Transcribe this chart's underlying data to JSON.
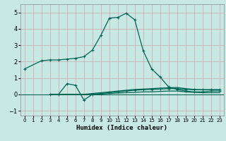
{
  "title": "",
  "xlabel": "Humidex (Indice chaleur)",
  "bg_color": "#c8e8e4",
  "line_color": "#006655",
  "grid_color": "#c8a8a8",
  "xlim": [
    -0.5,
    23.5
  ],
  "ylim": [
    -1.3,
    5.5
  ],
  "xticks": [
    0,
    1,
    2,
    3,
    4,
    5,
    6,
    7,
    8,
    9,
    10,
    11,
    12,
    13,
    14,
    15,
    16,
    17,
    18,
    19,
    20,
    21,
    22,
    23
  ],
  "yticks": [
    -1,
    0,
    1,
    2,
    3,
    4,
    5
  ],
  "line1_x": [
    0,
    2,
    3,
    4,
    5,
    6,
    7,
    8,
    9,
    10,
    11,
    12,
    13,
    14,
    15,
    16,
    17,
    18,
    19,
    20,
    21,
    22,
    23
  ],
  "line1_y": [
    1.55,
    2.05,
    2.1,
    2.1,
    2.15,
    2.2,
    2.3,
    2.7,
    3.6,
    4.65,
    4.7,
    4.95,
    4.55,
    2.65,
    1.55,
    1.05,
    0.45,
    0.3,
    0.2,
    0.15,
    0.15,
    0.2,
    0.2
  ],
  "line2_x": [
    3,
    4,
    5,
    6,
    7,
    8,
    9,
    10,
    11,
    12,
    13,
    14,
    15,
    16,
    17,
    18,
    19,
    20,
    21,
    22,
    23
  ],
  "line2_y": [
    0.0,
    0.0,
    0.65,
    0.55,
    -0.35,
    0.0,
    0.05,
    0.1,
    0.15,
    0.2,
    0.25,
    0.28,
    0.3,
    0.32,
    0.35,
    0.35,
    0.3,
    0.28,
    0.28,
    0.28,
    0.28
  ],
  "line3_x": [
    3,
    4,
    5,
    6,
    7,
    8,
    9,
    10,
    11,
    12,
    13,
    14,
    15,
    16,
    17,
    18,
    19,
    20,
    21,
    22,
    23
  ],
  "line3_y": [
    0.0,
    0.0,
    0.0,
    0.0,
    0.0,
    0.05,
    0.1,
    0.15,
    0.2,
    0.25,
    0.3,
    0.32,
    0.35,
    0.38,
    0.4,
    0.42,
    0.35,
    0.3,
    0.28,
    0.28,
    0.28
  ],
  "line4_x": [
    3,
    4,
    5,
    6,
    7,
    8,
    9,
    10,
    11,
    12,
    13,
    14,
    15,
    16,
    17,
    18,
    19,
    20,
    21,
    22,
    23
  ],
  "line4_y": [
    0.0,
    0.0,
    0.0,
    0.0,
    0.0,
    0.0,
    0.02,
    0.05,
    0.08,
    0.1,
    0.12,
    0.15,
    0.15,
    0.18,
    0.2,
    0.2,
    0.15,
    0.12,
    0.1,
    0.1,
    0.1
  ]
}
